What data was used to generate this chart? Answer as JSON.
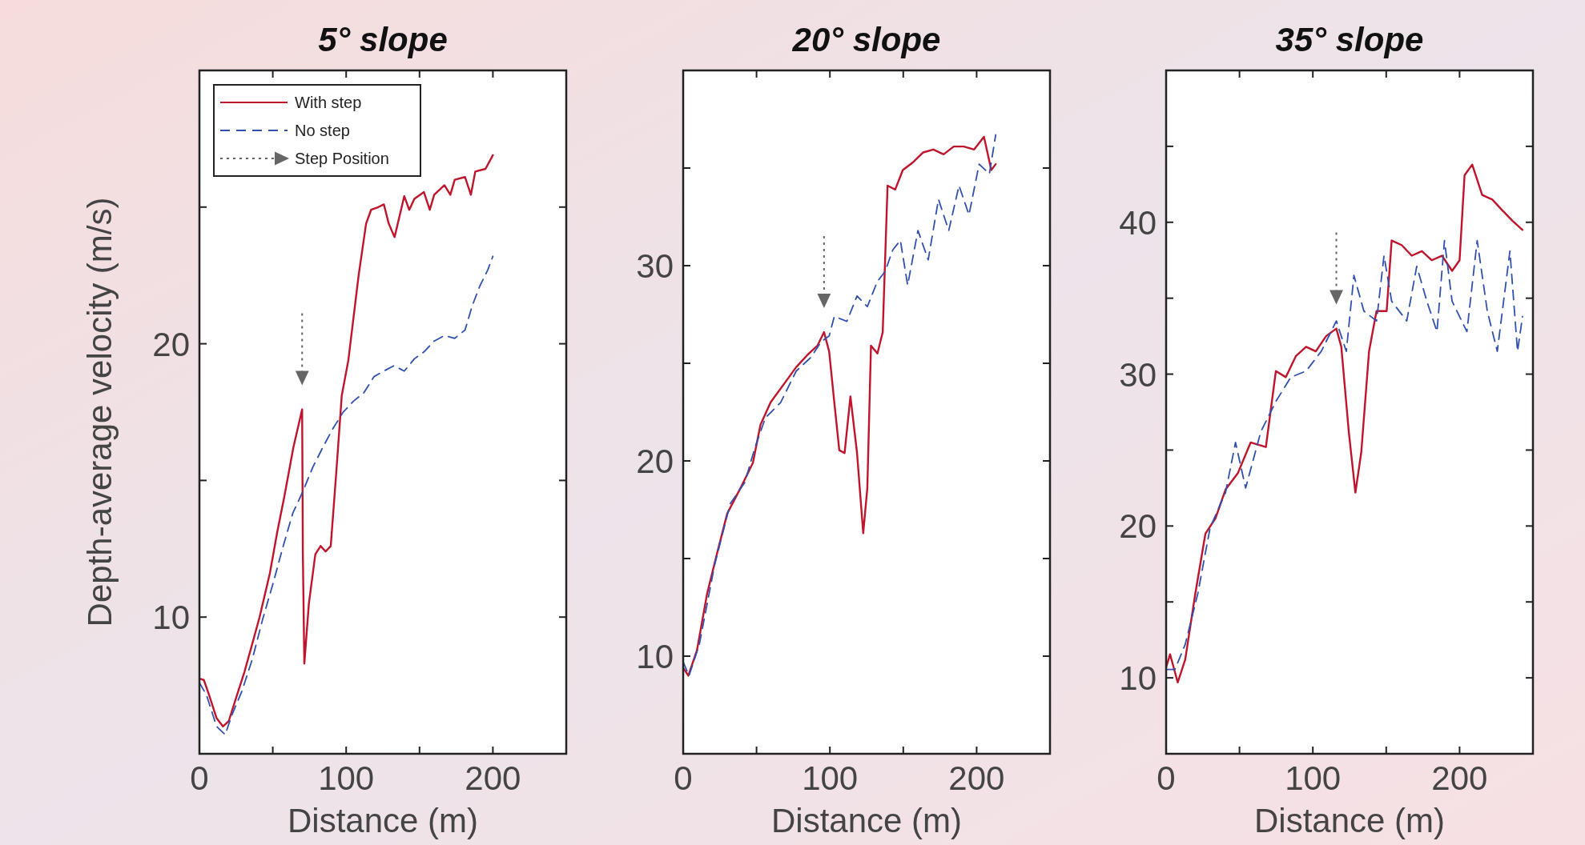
{
  "chart_data": [
    {
      "type": "line",
      "title": "5° slope",
      "xlabel": "Distance (m)",
      "ylabel": "Depth-average velocity (m/s)",
      "xlim": [
        0,
        250
      ],
      "xticks": [
        0,
        {
          "value": 50,
          "label": null
        },
        100,
        {
          "value": 150,
          "label": null
        },
        200,
        {
          "value": 250,
          "label": null
        }
      ],
      "ylim": [
        5,
        30
      ],
      "yticks": [
        10,
        {
          "value": 15,
          "label": null
        },
        20,
        {
          "value": 25,
          "label": null
        }
      ],
      "legend": "top left",
      "series": [
        {
          "name": "With step",
          "color": "#c0142c",
          "line_style": "solid",
          "x": [
            0,
            3,
            6.6,
            11.7,
            16,
            20,
            25.6,
            30.7,
            35.9,
            41,
            48,
            53,
            58,
            64,
            70,
            70.5,
            71.5,
            74.6,
            79,
            82.6,
            86,
            89.5,
            93,
            97,
            101.5,
            108.5,
            113.6,
            117,
            122,
            125.7,
            129,
            133,
            139.6,
            143,
            146.5,
            153,
            157,
            160,
            167,
            171,
            174,
            181,
            185,
            188,
            195,
            200
          ],
          "values": [
            7.75,
            7.7,
            7.15,
            6.3,
            6.0,
            6.2,
            7.15,
            8.0,
            9.0,
            10.0,
            11.6,
            13.1,
            14.45,
            16.2,
            17.6,
            12.3,
            8.3,
            10.5,
            12.3,
            12.6,
            12.4,
            12.6,
            15.1,
            18.1,
            19.4,
            22.5,
            24.4,
            24.9,
            25.0,
            25.1,
            24.4,
            23.9,
            25.4,
            24.9,
            25.3,
            25.55,
            24.9,
            25.45,
            25.8,
            25.45,
            26.0,
            26.1,
            25.45,
            26.3,
            26.4,
            26.9
          ]
        },
        {
          "name": "No step",
          "color": "#3050b0",
          "line_style": "dashed",
          "x": [
            0,
            4.8,
            11.7,
            17.6,
            22,
            29,
            36,
            43,
            50,
            56.6,
            63.6,
            70.5,
            77.4,
            84,
            91,
            98,
            105,
            112,
            119,
            125.7,
            132.6,
            139.6,
            146.5,
            153,
            160,
            167,
            174,
            181,
            186,
            191,
            196.5,
            200
          ],
          "values": [
            7.6,
            7.15,
            6.0,
            5.7,
            6.4,
            7.3,
            8.45,
            9.9,
            11.2,
            12.5,
            13.8,
            14.6,
            15.5,
            16.2,
            16.9,
            17.5,
            17.9,
            18.2,
            18.8,
            19.0,
            19.2,
            19.0,
            19.45,
            19.7,
            20.1,
            20.3,
            20.2,
            20.5,
            21.4,
            22.1,
            22.7,
            23.2
          ]
        }
      ],
      "annotations": [
        "Step Position"
      ]
    },
    {
      "type": "line",
      "title": "20° slope",
      "xlabel": "Distance (m)",
      "xlim": [
        0,
        250
      ],
      "xticks": [
        0,
        {
          "value": 50,
          "label": null
        },
        100,
        {
          "value": 150,
          "label": null
        },
        200,
        {
          "value": 250,
          "label": null
        }
      ],
      "ylim": [
        5,
        40
      ],
      "yticks": [
        10,
        {
          "value": 15,
          "label": null
        },
        20,
        {
          "value": 25,
          "label": null
        },
        30,
        {
          "value": 35,
          "label": null
        }
      ],
      "series": [
        {
          "color": "#c0142c",
          "line_style": "solid",
          "x": [
            0,
            3.5,
            9.4,
            16.3,
            23.2,
            30,
            39,
            47.5,
            52.7,
            59.6,
            68.3,
            77,
            85.6,
            91.5,
            96,
            99.5,
            103,
            106.4,
            110,
            114,
            118.5,
            122.7,
            125.5,
            128,
            132.4,
            136,
            139.3,
            144.5,
            149.7,
            156.7,
            163.6,
            170.5,
            177.5,
            184.4,
            191.3,
            198.3,
            205,
            210,
            213
          ],
          "values": [
            9.4,
            9.0,
            10.3,
            13.2,
            15.3,
            17.3,
            18.6,
            19.9,
            21.85,
            23.0,
            23.9,
            24.8,
            25.5,
            25.9,
            26.6,
            25.6,
            23.0,
            20.55,
            20.4,
            23.3,
            20.4,
            16.3,
            18.6,
            25.9,
            25.5,
            26.6,
            34.1,
            33.9,
            34.9,
            35.3,
            35.8,
            35.95,
            35.7,
            36.1,
            36.1,
            35.95,
            36.6,
            34.9,
            35.2
          ]
        },
        {
          "color": "#3050b0",
          "line_style": "dashed",
          "x": [
            0,
            4,
            11,
            21.5,
            32,
            42,
            49,
            56,
            66.5,
            77,
            87,
            94,
            99.5,
            103,
            111.6,
            118.5,
            125.5,
            132.4,
            137.6,
            142.8,
            148,
            153,
            160,
            167,
            174,
            181,
            188,
            194.8,
            201.7,
            208.7,
            213
          ],
          "values": [
            9.7,
            9.0,
            10.6,
            14.7,
            17.8,
            18.9,
            20.7,
            22.2,
            23.0,
            24.6,
            25.3,
            26.1,
            26.4,
            27.4,
            27.15,
            28.45,
            27.9,
            29.2,
            29.7,
            30.8,
            31.3,
            29.0,
            31.8,
            30.3,
            33.4,
            31.8,
            34.1,
            32.6,
            35.2,
            34.7,
            36.7
          ]
        }
      ]
    },
    {
      "type": "line",
      "title": "35° slope",
      "xlabel": "Distance (m)",
      "xlim": [
        0,
        250
      ],
      "xticks": [
        0,
        {
          "value": 50,
          "label": null
        },
        100,
        {
          "value": 150,
          "label": null
        },
        200,
        {
          "value": 250,
          "label": null
        }
      ],
      "ylim": [
        5,
        50
      ],
      "yticks": [
        10,
        {
          "value": 15,
          "label": null
        },
        20,
        {
          "value": 25,
          "label": null
        },
        30,
        {
          "value": 35,
          "label": null
        },
        40,
        {
          "value": 45,
          "label": null
        }
      ],
      "series": [
        {
          "color": "#c0142c",
          "line_style": "solid",
          "x": [
            0,
            2.7,
            7.9,
            13,
            19.9,
            26.8,
            33.6,
            40.5,
            49,
            57.6,
            68,
            74.8,
            81.6,
            88.5,
            95.4,
            102,
            109,
            116,
            119.4,
            124.5,
            129,
            133,
            138.3,
            143.4,
            150.3,
            153.7,
            160.5,
            167.4,
            174.3,
            181,
            188,
            194.9,
            200,
            203.4,
            208.6,
            215.4,
            222.3,
            229,
            236,
            242.9
          ],
          "values": [
            10.7,
            11.55,
            9.7,
            11.2,
            15.55,
            19.5,
            20.5,
            22.4,
            23.5,
            25.5,
            25.2,
            30.2,
            29.8,
            31.2,
            31.8,
            31.5,
            32.5,
            33.0,
            31.8,
            26.2,
            22.2,
            24.85,
            31.5,
            34.15,
            34.15,
            38.8,
            38.5,
            37.8,
            38.1,
            37.5,
            37.8,
            36.8,
            37.5,
            43.1,
            43.8,
            41.8,
            41.5,
            40.8,
            40.1,
            39.5
          ]
        },
        {
          "color": "#3050b0",
          "line_style": "dashed",
          "x": [
            0,
            6,
            13,
            21.6,
            30,
            40.5,
            47.3,
            54.2,
            64.5,
            74.8,
            85,
            95.4,
            105.7,
            116,
            122.8,
            128,
            134.8,
            143.4,
            148.5,
            153.7,
            164,
            170.8,
            177.7,
            184.6,
            189.7,
            194.9,
            205,
            212,
            218.9,
            225.7,
            234.3,
            239.5,
            242.9
          ],
          "values": [
            10.55,
            10.55,
            12.2,
            15.55,
            19.9,
            22.2,
            25.5,
            22.5,
            26.2,
            28.2,
            29.8,
            30.2,
            31.5,
            33.5,
            31.5,
            36.5,
            34.15,
            33.5,
            37.8,
            34.8,
            33.5,
            37.1,
            34.8,
            32.8,
            38.8,
            34.8,
            32.8,
            38.8,
            34.15,
            31.5,
            38.1,
            31.5,
            33.8
          ]
        }
      ]
    }
  ]
}
